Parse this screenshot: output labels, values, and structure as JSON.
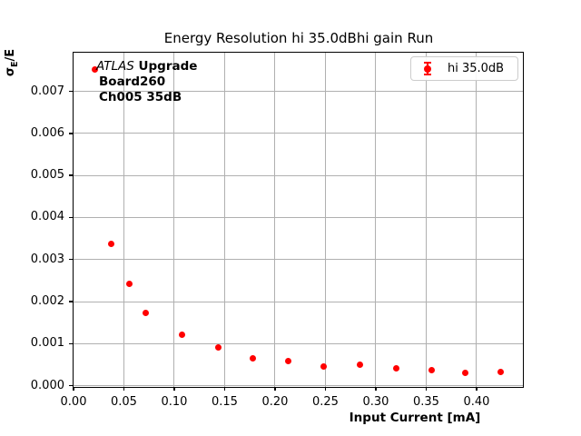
{
  "title": {
    "text": "Energy Resolution hi 35.0dBhi gain Run"
  },
  "axes": {
    "xlabel": "Input Current [mA]",
    "ylabel": "σE/E",
    "ylabel_parts": {
      "sigma": "σ",
      "sub": "E",
      "rest": "/E"
    }
  },
  "annotation": {
    "brand_italic": "ATLAS",
    "brand_bold": "Upgrade",
    "line2": "Board260",
    "line3": "Ch005 35dB"
  },
  "legend": {
    "entries": [
      {
        "label": "hi 35.0dB",
        "marker": "errorbar-dot-icon",
        "color": "#ff0000"
      }
    ]
  },
  "colors": {
    "marker": "#ff0000",
    "grid": "#b0b0b0",
    "spine": "#000000",
    "legend_border": "#cccccc",
    "text": "#000000"
  },
  "chart_data": {
    "type": "scatter",
    "title": "Energy Resolution hi 35.0dBhi gain Run",
    "xlabel": "Input Current [mA]",
    "ylabel": "sigma_E/E",
    "grid": true,
    "legend_position": "upper right",
    "xlim": [
      0,
      0.446
    ],
    "ylim": [
      -3e-05,
      0.00792
    ],
    "xticks": [
      0.0,
      0.05,
      0.1,
      0.15,
      0.2,
      0.25,
      0.3,
      0.35,
      0.4
    ],
    "xtick_labels": [
      "0.00",
      "0.05",
      "0.10",
      "0.15",
      "0.20",
      "0.25",
      "0.30",
      "0.35",
      "0.40"
    ],
    "yticks": [
      0.0,
      0.001,
      0.002,
      0.003,
      0.004,
      0.005,
      0.006,
      0.007
    ],
    "ytick_labels": [
      "0.000",
      "0.001",
      "0.002",
      "0.003",
      "0.004",
      "0.005",
      "0.006",
      "0.007"
    ],
    "series": [
      {
        "name": "hi 35.0dB",
        "color": "#ff0000",
        "marker": "circle",
        "x": [
          0.021,
          0.037,
          0.055,
          0.072,
          0.108,
          0.144,
          0.178,
          0.213,
          0.248,
          0.284,
          0.32,
          0.355,
          0.389,
          0.424
        ],
        "y": [
          0.00753,
          0.00338,
          0.00243,
          0.00173,
          0.00121,
          0.0009,
          0.00065,
          0.00058,
          0.00046,
          0.00049,
          0.00042,
          0.00036,
          0.00031,
          0.00033
        ]
      }
    ]
  }
}
